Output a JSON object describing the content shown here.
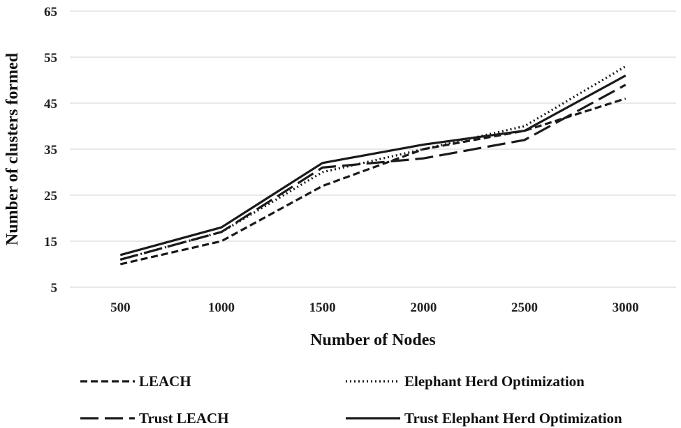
{
  "chart_data": {
    "type": "line",
    "title": "",
    "xlabel": "Number of Nodes",
    "ylabel": "Number of clusters formed",
    "categories": [
      "500",
      "1000",
      "1500",
      "2000",
      "2500",
      "3000"
    ],
    "yticks": [
      5,
      15,
      25,
      35,
      45,
      55,
      65
    ],
    "ylim": [
      5,
      65
    ],
    "grid": "horizontal",
    "legend_position": "bottom",
    "series": [
      {
        "name": "LEACH",
        "values": [
          10,
          15,
          27,
          35,
          39,
          46
        ],
        "dash": "dashed"
      },
      {
        "name": "Elephant Herd Optimization",
        "values": [
          11,
          17,
          30,
          35,
          40,
          53
        ],
        "dash": "dotted"
      },
      {
        "name": "Trust LEACH",
        "values": [
          11,
          17,
          31,
          33,
          37,
          49
        ],
        "dash": "long-dash"
      },
      {
        "name": "Trust Elephant Herd Optimization",
        "values": [
          12,
          18,
          32,
          36,
          39,
          51
        ],
        "dash": "solid"
      }
    ],
    "colors": {
      "lines": "#1a1a1a",
      "grid": "#d9d9d9"
    }
  }
}
